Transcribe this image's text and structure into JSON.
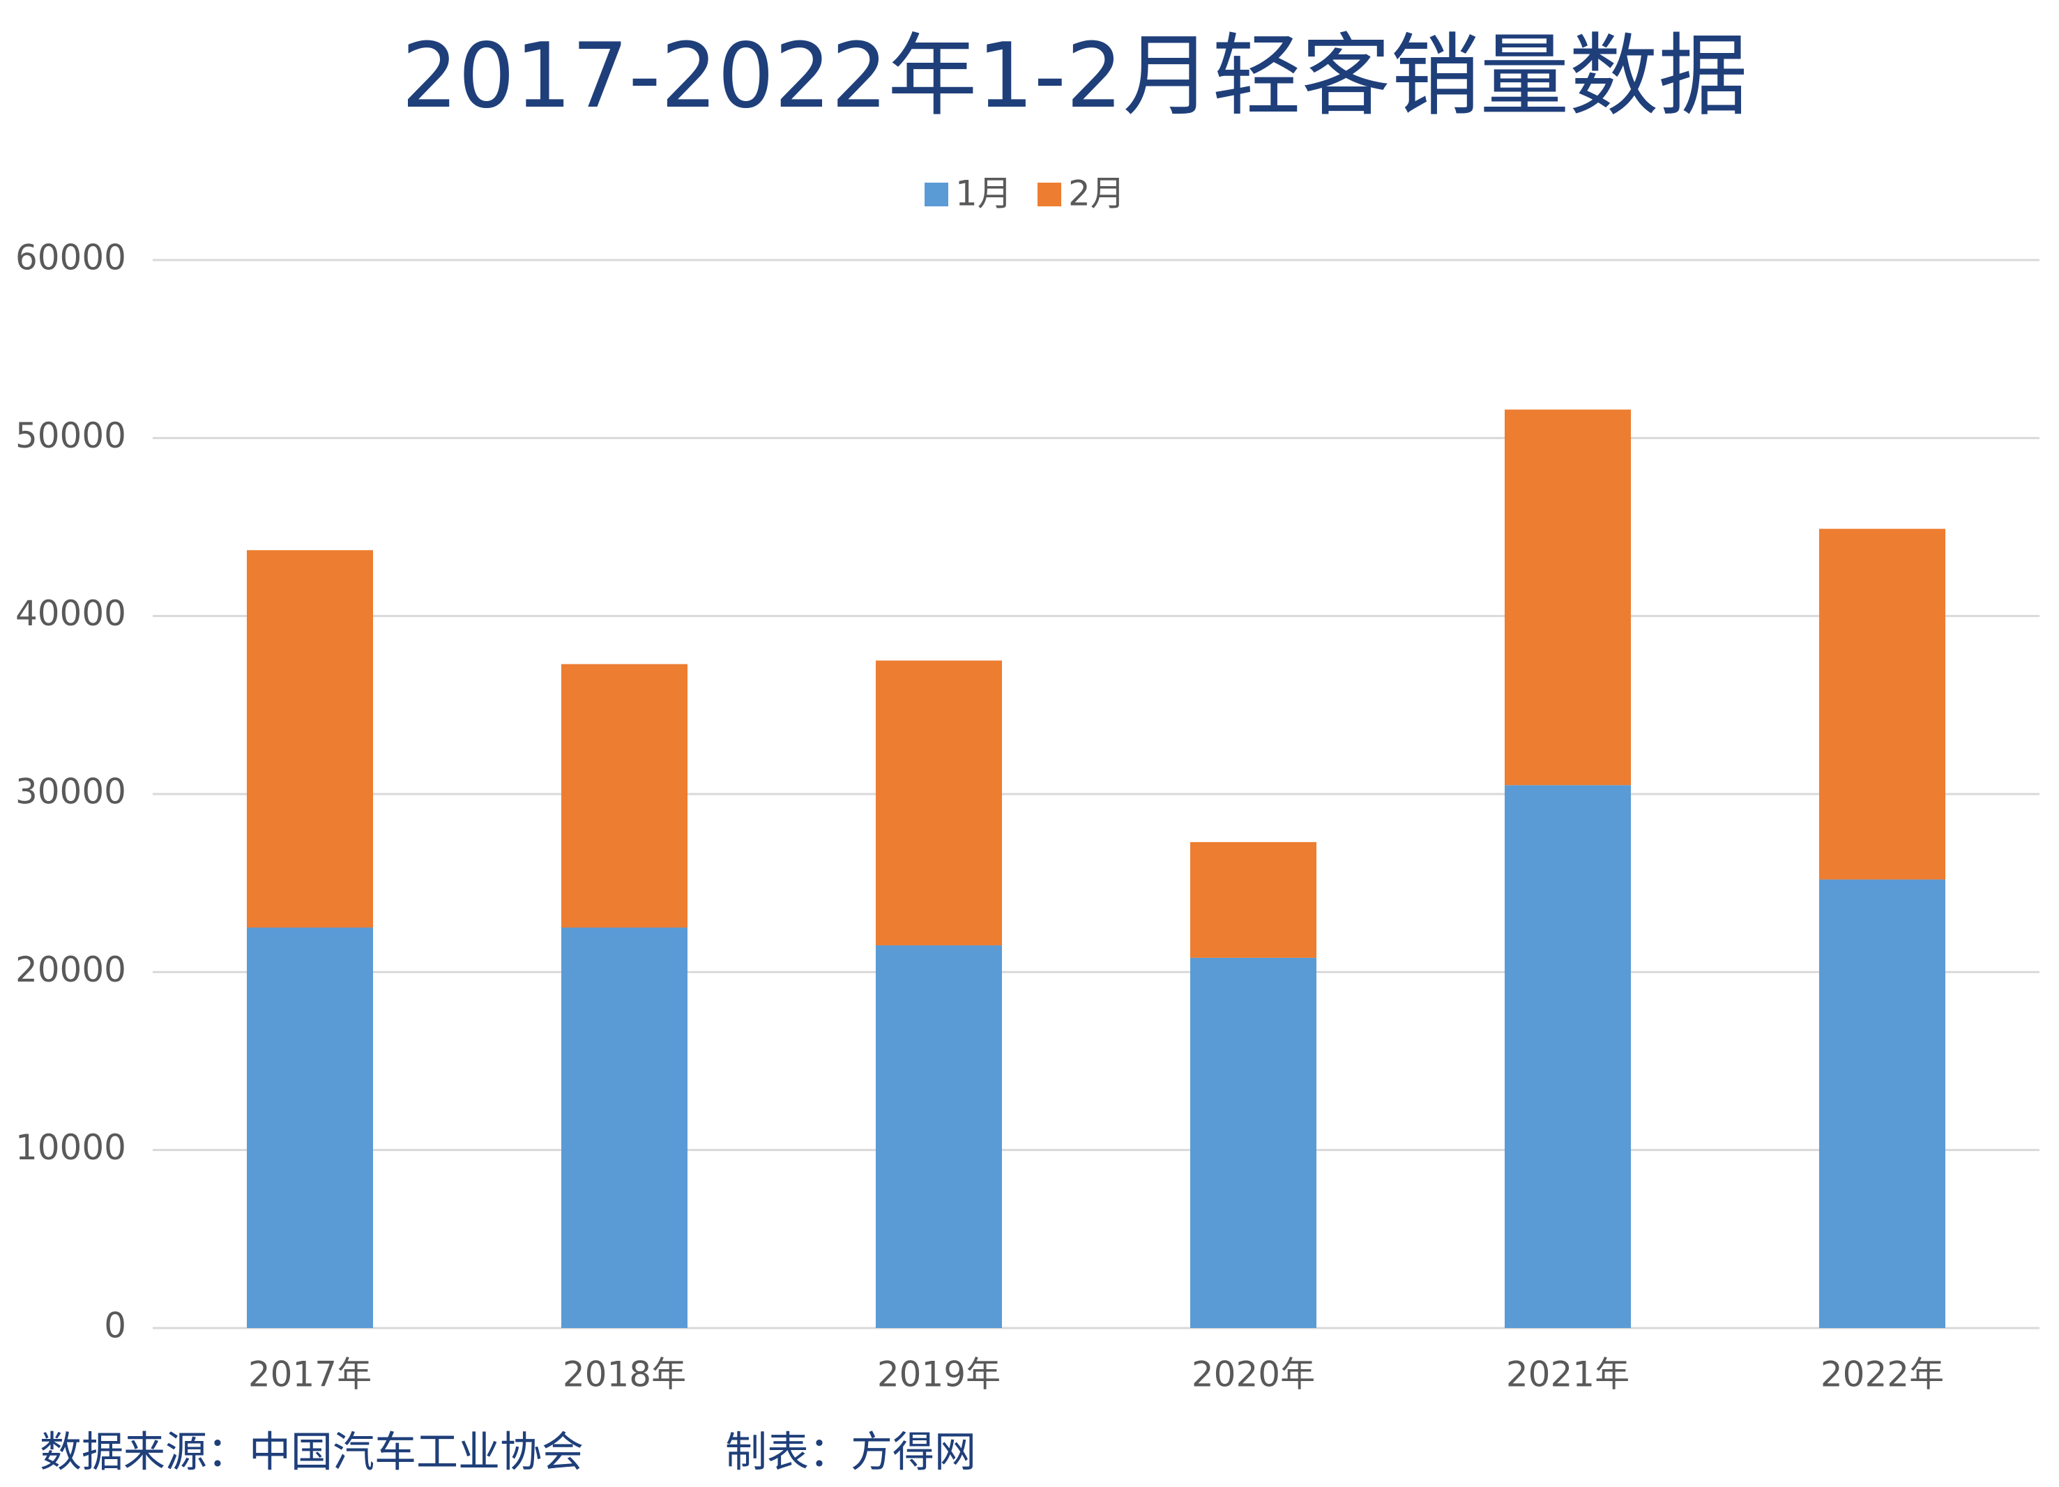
{
  "chart_data": {
    "type": "stacked_bar",
    "title": "2017-2022年1-2月轻客销量数据",
    "categories": [
      "2017年",
      "2018年",
      "2019年",
      "2020年",
      "2021年",
      "2022年"
    ],
    "series": [
      {
        "name": "1月",
        "color": "#5b9bd5",
        "values": [
          22500,
          22500,
          21500,
          20800,
          30500,
          25200
        ]
      },
      {
        "name": "2月",
        "color": "#ed7d31",
        "values": [
          21200,
          14800,
          16000,
          6500,
          21100,
          19700
        ]
      }
    ],
    "ylim": [
      0,
      60000
    ],
    "yticks": [
      0,
      10000,
      20000,
      30000,
      40000,
      50000,
      60000
    ],
    "grid": true,
    "legend": "top",
    "source": "数据来源：中国汽车工业协会",
    "credit": "制表：方得网"
  }
}
